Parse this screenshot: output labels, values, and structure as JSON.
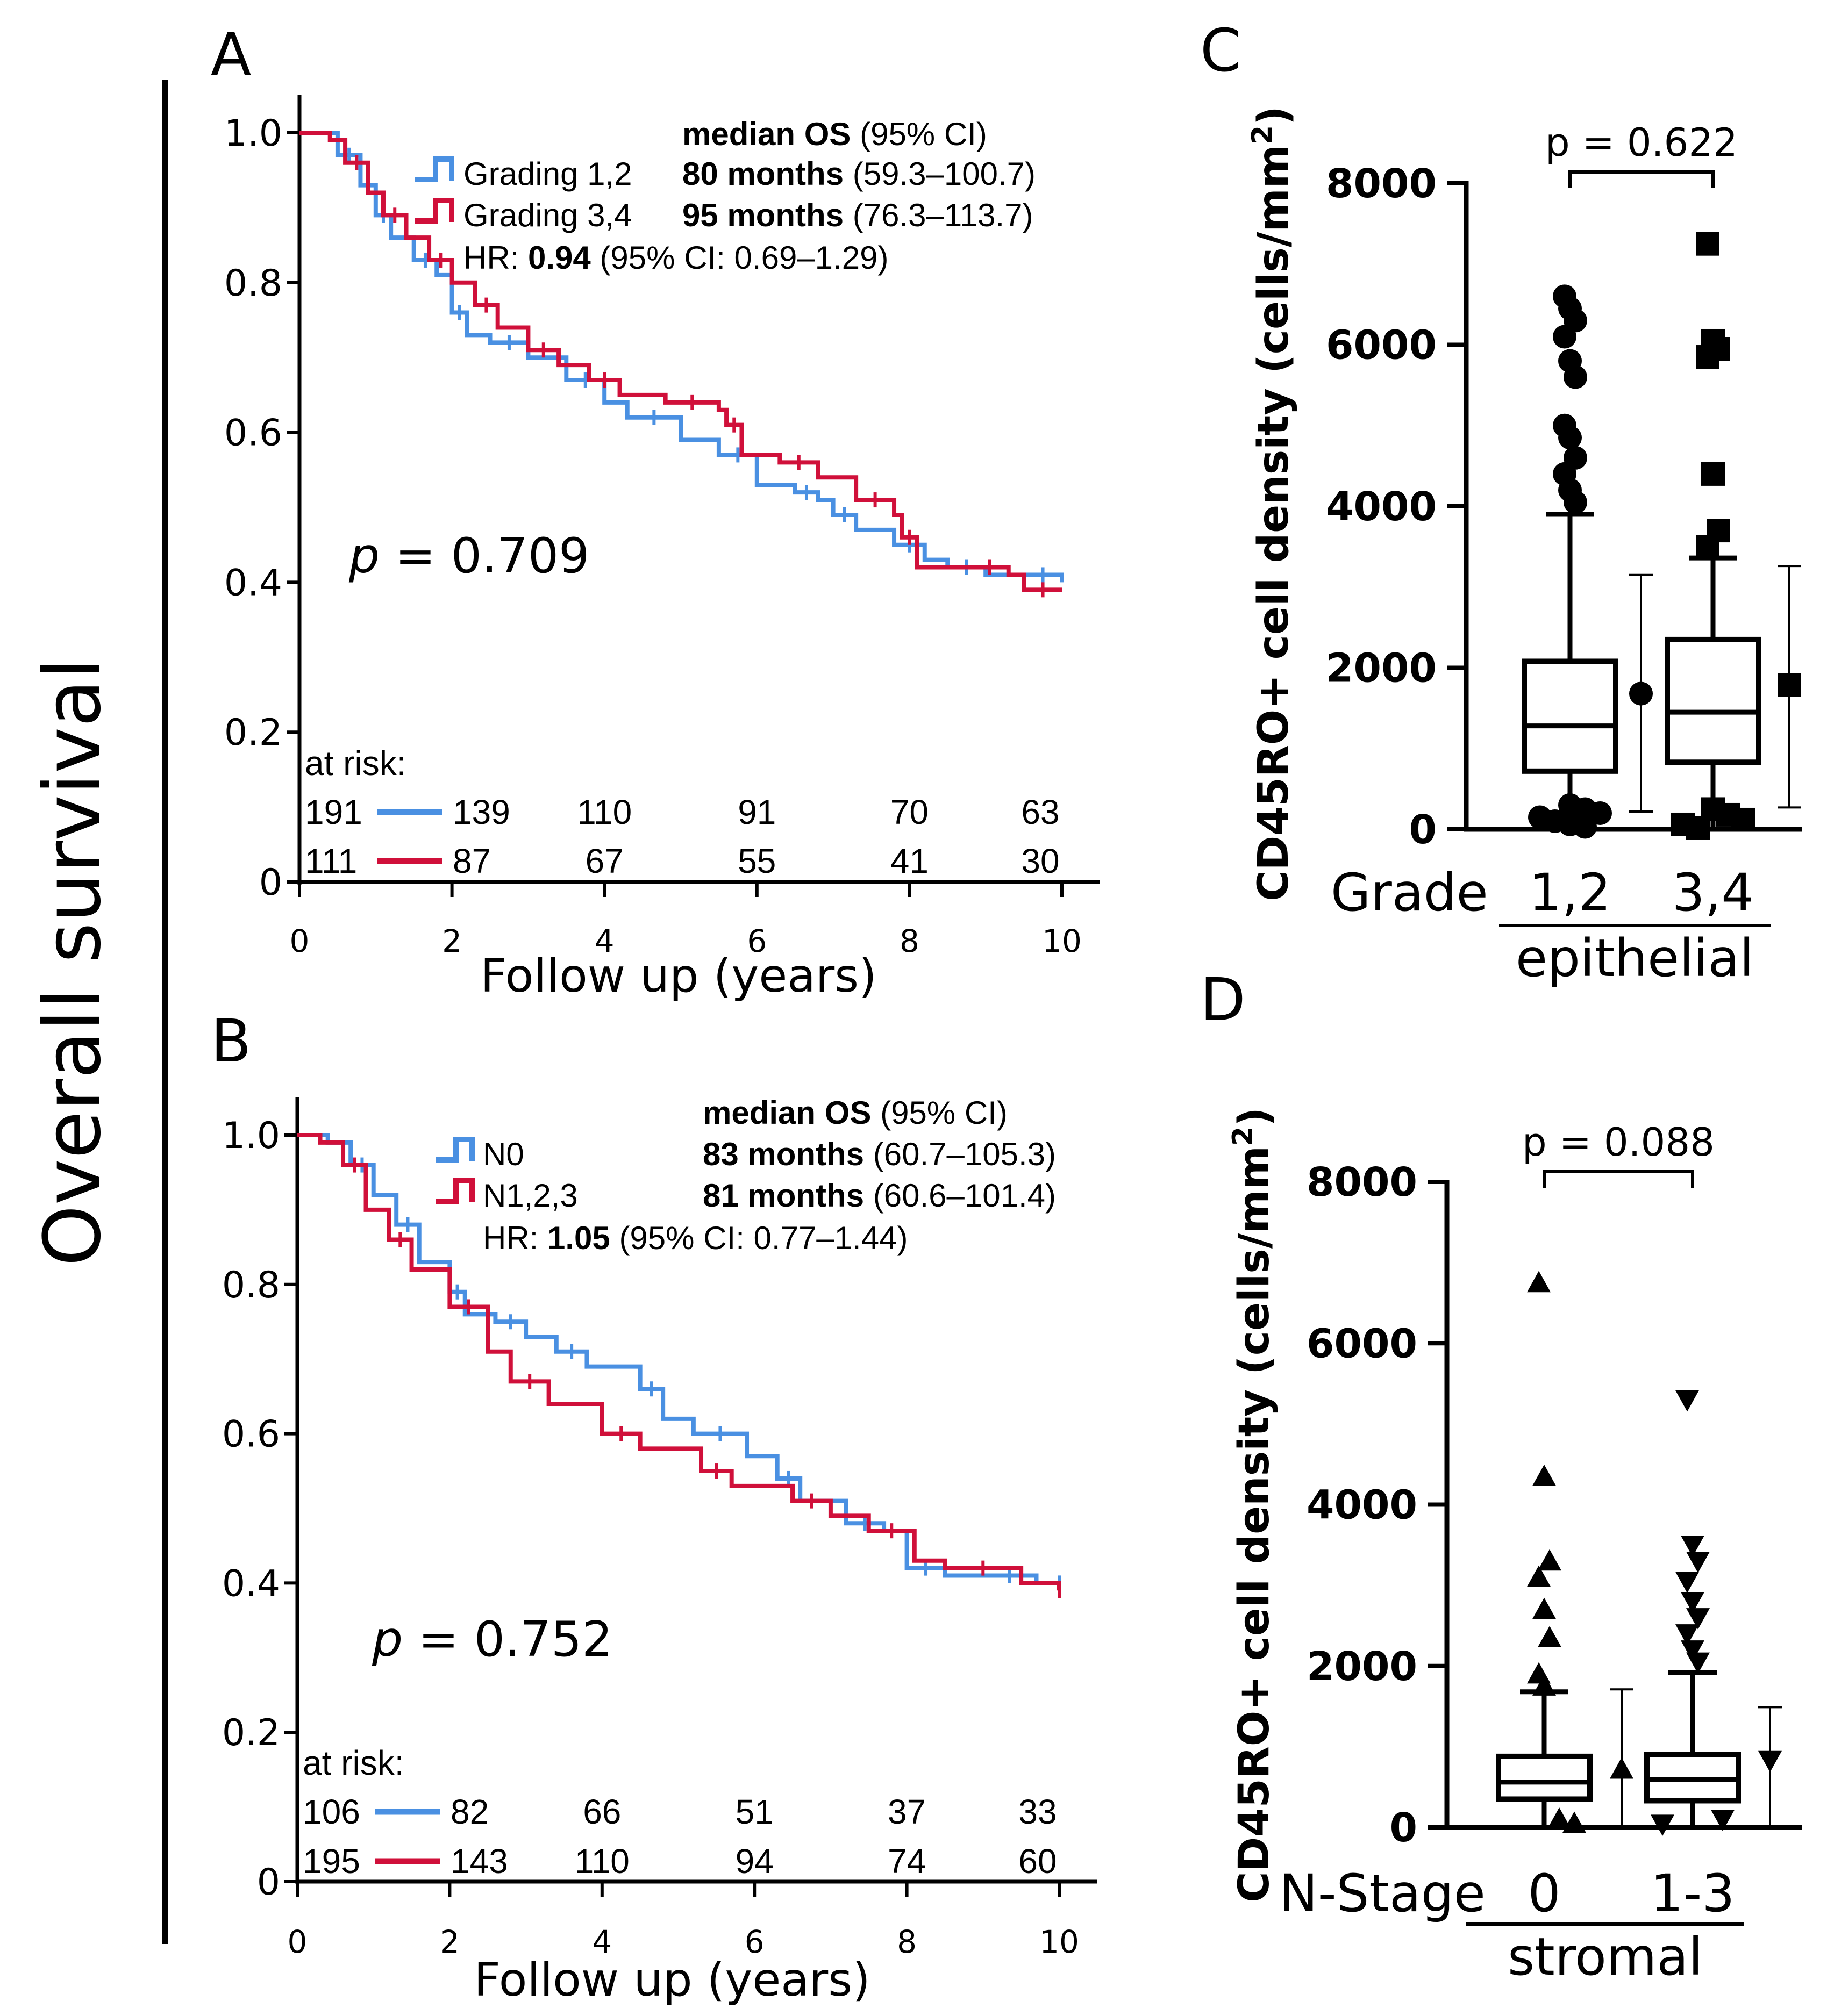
{
  "figure": {
    "panel_letters": [
      "A",
      "B",
      "C",
      "D"
    ],
    "shared_ylabel": "Overall survival"
  },
  "chart_data": [
    {
      "id": "A",
      "type": "line",
      "subtype": "kaplan-meier",
      "xlabel": "Follow up (years)",
      "ylabel": "Overall survival",
      "xlim": [
        0,
        10
      ],
      "ylim": [
        0,
        1
      ],
      "xticks": [
        "0",
        "2",
        "4",
        "6",
        "8",
        "10"
      ],
      "yticks": [
        "0",
        "0.2",
        "0.4",
        "0.6",
        "0.8",
        "1.0"
      ],
      "legend_header": {
        "bold": "median OS",
        "rest": " (95% CI)"
      },
      "series": [
        {
          "name": "Grading 1,2",
          "color": "#4a90e2",
          "median_bold": "80 months",
          "median_ci": " (59.3–100.7)",
          "points": [
            [
              0,
              1
            ],
            [
              0.3,
              1
            ],
            [
              0.5,
              0.97
            ],
            [
              0.8,
              0.93
            ],
            [
              1,
              0.89
            ],
            [
              1.2,
              0.86
            ],
            [
              1.5,
              0.83
            ],
            [
              1.8,
              0.81
            ],
            [
              2,
              0.76
            ],
            [
              2.2,
              0.73
            ],
            [
              2.5,
              0.72
            ],
            [
              3,
              0.7
            ],
            [
              3.5,
              0.67
            ],
            [
              4,
              0.64
            ],
            [
              4.3,
              0.62
            ],
            [
              5,
              0.59
            ],
            [
              5.5,
              0.57
            ],
            [
              6,
              0.53
            ],
            [
              6.5,
              0.52
            ],
            [
              6.8,
              0.51
            ],
            [
              7,
              0.49
            ],
            [
              7.3,
              0.47
            ],
            [
              7.8,
              0.45
            ],
            [
              8.2,
              0.43
            ],
            [
              8.5,
              0.42
            ],
            [
              9,
              0.41
            ],
            [
              9.5,
              0.41
            ],
            [
              10,
              0.4
            ]
          ],
          "at_risk": [
            "191",
            "139",
            "110",
            "91",
            "70",
            "63"
          ]
        },
        {
          "name": "Grading 3,4",
          "color": "#d0103a",
          "median_bold": "95 months",
          "median_ci": " (76.3–113.7)",
          "points": [
            [
              0,
              1
            ],
            [
              0.4,
              0.99
            ],
            [
              0.6,
              0.96
            ],
            [
              0.9,
              0.92
            ],
            [
              1.1,
              0.89
            ],
            [
              1.4,
              0.86
            ],
            [
              1.7,
              0.83
            ],
            [
              2,
              0.8
            ],
            [
              2.3,
              0.77
            ],
            [
              2.6,
              0.74
            ],
            [
              3,
              0.71
            ],
            [
              3.4,
              0.69
            ],
            [
              3.8,
              0.67
            ],
            [
              4.2,
              0.65
            ],
            [
              4.8,
              0.64
            ],
            [
              5.5,
              0.63
            ],
            [
              5.6,
              0.61
            ],
            [
              5.8,
              0.57
            ],
            [
              6.3,
              0.56
            ],
            [
              6.8,
              0.54
            ],
            [
              7.3,
              0.51
            ],
            [
              7.8,
              0.49
            ],
            [
              7.9,
              0.46
            ],
            [
              8.1,
              0.42
            ],
            [
              8.8,
              0.42
            ],
            [
              9.3,
              0.41
            ],
            [
              9.5,
              0.39
            ],
            [
              10,
              0.39
            ]
          ],
          "at_risk": [
            "111",
            "87",
            "67",
            "55",
            "41",
            "30"
          ]
        }
      ],
      "hr": {
        "prefix": "HR: ",
        "bold": "0.94",
        "rest": " (95% CI: 0.69–1.29)"
      },
      "p_value": {
        "p": "p",
        "rest": " = 0.709"
      },
      "at_risk_label": "at risk:"
    },
    {
      "id": "B",
      "type": "line",
      "subtype": "kaplan-meier",
      "xlabel": "Follow up (years)",
      "ylabel": "Overall survival",
      "xlim": [
        0,
        10
      ],
      "ylim": [
        0,
        1
      ],
      "xticks": [
        "0",
        "2",
        "4",
        "6",
        "8",
        "10"
      ],
      "yticks": [
        "0",
        "0.2",
        "0.4",
        "0.6",
        "0.8",
        "1.0"
      ],
      "legend_header": {
        "bold": "median OS",
        "rest": " (95% CI)"
      },
      "series": [
        {
          "name": "N0",
          "color": "#4a90e2",
          "median_bold": "83 months",
          "median_ci": " (60.7–105.3)",
          "points": [
            [
              0,
              1
            ],
            [
              0.4,
              0.99
            ],
            [
              0.7,
              0.96
            ],
            [
              1,
              0.92
            ],
            [
              1.3,
              0.88
            ],
            [
              1.6,
              0.83
            ],
            [
              2,
              0.79
            ],
            [
              2.2,
              0.76
            ],
            [
              2.6,
              0.75
            ],
            [
              3,
              0.73
            ],
            [
              3.4,
              0.71
            ],
            [
              3.8,
              0.69
            ],
            [
              4.5,
              0.66
            ],
            [
              4.8,
              0.62
            ],
            [
              5.2,
              0.6
            ],
            [
              5.9,
              0.57
            ],
            [
              6.3,
              0.54
            ],
            [
              6.6,
              0.51
            ],
            [
              7.2,
              0.48
            ],
            [
              7.7,
              0.47
            ],
            [
              8,
              0.42
            ],
            [
              8.5,
              0.41
            ],
            [
              9,
              0.41
            ],
            [
              9.7,
              0.4
            ],
            [
              10,
              0.4
            ]
          ],
          "at_risk": [
            "106",
            "82",
            "66",
            "51",
            "37",
            "33"
          ]
        },
        {
          "name": "N1,2,3",
          "color": "#d0103a",
          "median_bold": "81 months",
          "median_ci": " (60.6–101.4)",
          "points": [
            [
              0,
              1
            ],
            [
              0.3,
              0.99
            ],
            [
              0.6,
              0.96
            ],
            [
              0.9,
              0.9
            ],
            [
              1.2,
              0.86
            ],
            [
              1.5,
              0.82
            ],
            [
              2,
              0.77
            ],
            [
              2.5,
              0.71
            ],
            [
              2.8,
              0.67
            ],
            [
              3.3,
              0.64
            ],
            [
              4,
              0.6
            ],
            [
              4.5,
              0.58
            ],
            [
              5.3,
              0.55
            ],
            [
              5.7,
              0.53
            ],
            [
              6.5,
              0.51
            ],
            [
              7,
              0.49
            ],
            [
              7.5,
              0.47
            ],
            [
              8.1,
              0.43
            ],
            [
              8.5,
              0.42
            ],
            [
              9.5,
              0.4
            ],
            [
              10,
              0.39
            ]
          ],
          "at_risk": [
            "195",
            "143",
            "110",
            "94",
            "74",
            "60"
          ]
        }
      ],
      "hr": {
        "prefix": "HR: ",
        "bold": "1.05",
        "rest": " (95% CI: 0.77–1.44)"
      },
      "p_value": {
        "p": "p",
        "rest": " = 0.752"
      },
      "at_risk_label": "at risk:"
    },
    {
      "id": "C",
      "type": "box",
      "ylabel": "CD45RO+ cell density (cells/mm",
      "ylabel_sup": "2",
      "ylabel_close": ")",
      "ylim": [
        0,
        8000
      ],
      "yticks": [
        "0",
        "2000",
        "4000",
        "6000",
        "8000"
      ],
      "group_prefix": "Grade",
      "group_title": "epithelial",
      "p_value": "p = 0.622",
      "marker": "circle-square",
      "groups": [
        {
          "label": "1,2",
          "marker": "circle",
          "q1": 720,
          "median": 1280,
          "q3": 2080,
          "whisker_low": 0,
          "whisker_high": 3900,
          "outliers": [
            6600,
            6450,
            6300,
            6100,
            5800,
            5600,
            5000,
            4850,
            4600,
            4400,
            4200,
            4050,
            300,
            250,
            200,
            150,
            100,
            60,
            30
          ],
          "mean": 1680,
          "sd_low": 220,
          "sd_high": 3150
        },
        {
          "label": "3,4",
          "marker": "square",
          "q1": 830,
          "median": 1450,
          "q3": 2350,
          "whisker_low": 0,
          "whisker_high": 3360,
          "outliers": [
            7250,
            6050,
            5950,
            5850,
            4400,
            3700,
            3500,
            250,
            180,
            120,
            60,
            20
          ],
          "mean": 1790,
          "sd_low": 270,
          "sd_high": 3260
        }
      ]
    },
    {
      "id": "D",
      "type": "box",
      "ylabel": "CD45RO+ cell density (cells/mm",
      "ylabel_sup": "2",
      "ylabel_close": ")",
      "ylim": [
        0,
        8000
      ],
      "yticks": [
        "0",
        "2000",
        "4000",
        "6000",
        "8000"
      ],
      "group_prefix": "N-Stage",
      "group_title": "stromal",
      "p_value": "p = 0.088",
      "groups": [
        {
          "label": "0",
          "marker": "triangle-up",
          "q1": 350,
          "median": 560,
          "q3": 880,
          "whisker_low": 0,
          "whisker_high": 1680,
          "outliers": [
            6750,
            4350,
            3300,
            3100,
            2700,
            2350,
            1900,
            1750,
            100,
            50
          ],
          "mean": 720,
          "sd_low": 0,
          "sd_high": 1710
        },
        {
          "label": "1-3",
          "marker": "triangle-down",
          "q1": 330,
          "median": 590,
          "q3": 900,
          "whisker_low": 0,
          "whisker_high": 1920,
          "outliers": [
            5300,
            3500,
            3300,
            3050,
            2800,
            2600,
            2400,
            2200,
            2050,
            100,
            40
          ],
          "mean": 830,
          "sd_low": 0,
          "sd_high": 1490
        }
      ]
    }
  ]
}
